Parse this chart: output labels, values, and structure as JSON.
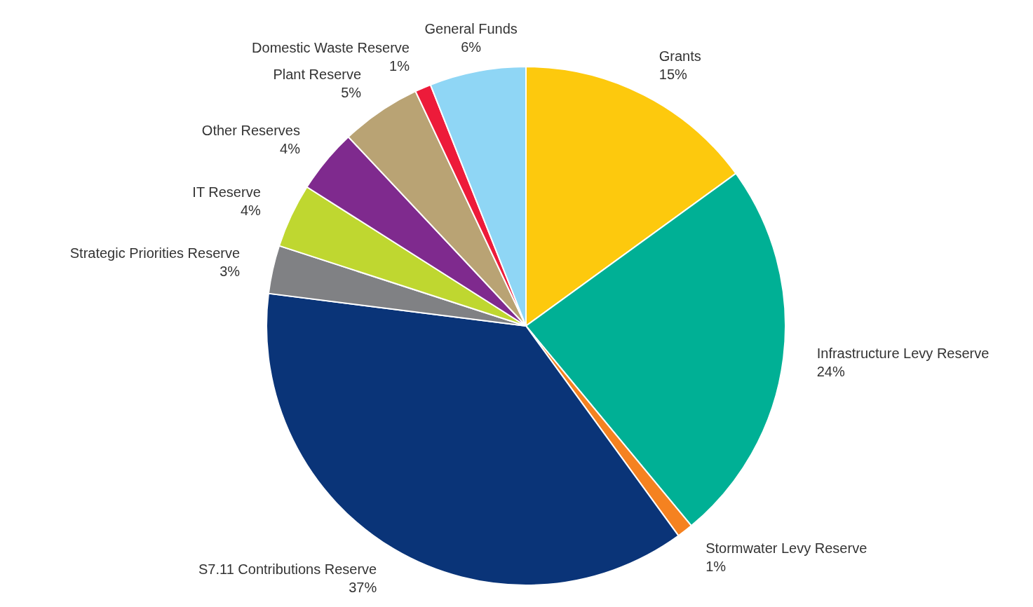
{
  "chart_data": {
    "type": "pie",
    "categories": [
      "Grants",
      "Infrastructure Levy Reserve",
      "Stormwater Levy Reserve",
      "S7.11 Contributions Reserve",
      "Strategic Priorities Reserve",
      "IT Reserve",
      "Other Reserves",
      "Plant Reserve",
      "Domestic Waste Reserve",
      "General Funds"
    ],
    "values": [
      15,
      24,
      1,
      37,
      3,
      4,
      4,
      5,
      1,
      6
    ],
    "value_labels": [
      "15%",
      "24%",
      "1%",
      "37%",
      "3%",
      "4%",
      "4%",
      "5%",
      "1%",
      "6%"
    ],
    "colors": [
      "#fdc90d",
      "#00b095",
      "#f58220",
      "#0a3478",
      "#808184",
      "#bfd730",
      "#7f2a8e",
      "#b9a374",
      "#ed1b3a",
      "#8fd6f5"
    ],
    "legend": false
  }
}
